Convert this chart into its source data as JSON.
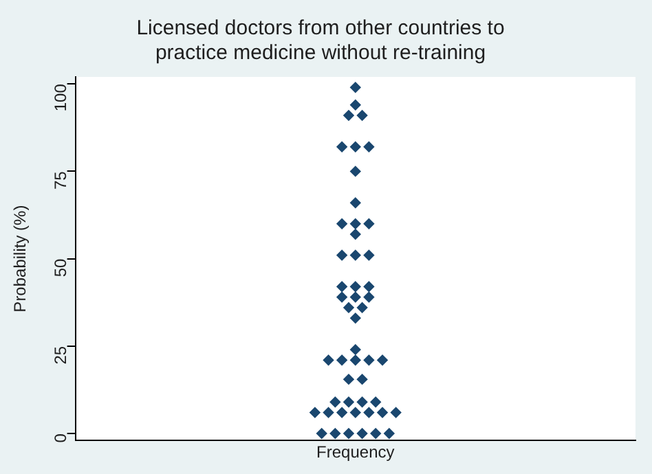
{
  "chart_data": {
    "type": "scatter",
    "title": "Licensed doctors from other countries to\npractice medicine without re-training",
    "xlabel": "Frequency",
    "ylabel": "Probability (%)",
    "categories": [
      null,
      null,
      null,
      null,
      null,
      null,
      null,
      null,
      null,
      null,
      null,
      null,
      null,
      null,
      null,
      null,
      null,
      null,
      null,
      null,
      null,
      null,
      null,
      null,
      null,
      null,
      null,
      null,
      null,
      null,
      null,
      null,
      null,
      null,
      null,
      null,
      null,
      null,
      null,
      null,
      null,
      null,
      null,
      null,
      null,
      null,
      null,
      null,
      null,
      null,
      null,
      null,
      null,
      null,
      null,
      null,
      null,
      null,
      null,
      null,
      null,
      null,
      null,
      null,
      null,
      null,
      null,
      null,
      null,
      null,
      null,
      null,
      null,
      null,
      null,
      null,
      null,
      null,
      null,
      null,
      null,
      null,
      null
    ],
    "series": [
      {
        "color": "#1a476f",
        "values": [
          null,
          null,
          null,
          null,
          null,
          null,
          null,
          null,
          null,
          null,
          null,
          null,
          null,
          null,
          null,
          null,
          null,
          null,
          null,
          null,
          null,
          null,
          null,
          null,
          null,
          null,
          null,
          null,
          null,
          null,
          null,
          null,
          null,
          null,
          null,
          6,
          0,
          6,
          0,
          6,
          0,
          6,
          0,
          6,
          0,
          6,
          0,
          6,
          null,
          null,
          null,
          null,
          null,
          null,
          null,
          null,
          null,
          null,
          null,
          null,
          null,
          null,
          null,
          null,
          null,
          null,
          null,
          null,
          null,
          null,
          null,
          null,
          null,
          null,
          null,
          null,
          null,
          null,
          null,
          null,
          null,
          null,
          null
        ]
      },
      {
        "color": "#1a476f",
        "values": [
          null,
          null,
          null,
          null,
          null,
          null,
          null,
          null,
          null,
          null,
          null,
          null,
          null,
          null,
          null,
          null,
          null,
          null,
          null,
          null,
          null,
          null,
          null,
          null,
          null,
          null,
          null,
          null,
          null,
          null,
          null,
          null,
          null,
          null,
          null,
          null,
          null,
          21,
          9,
          21,
          9,
          21,
          9,
          21,
          9,
          21,
          null,
          null,
          null,
          null,
          null,
          null,
          null,
          null,
          null,
          null,
          null,
          null,
          null,
          null,
          null,
          null,
          null,
          null,
          null,
          null,
          null,
          null,
          null,
          null,
          null,
          null,
          null,
          null,
          null,
          null,
          null,
          null,
          null,
          null,
          null,
          null,
          null
        ]
      },
      {
        "color": "#1a476f",
        "values": [
          null,
          null,
          null,
          null,
          null,
          null,
          null,
          null,
          null,
          null,
          null,
          null,
          null,
          null,
          null,
          null,
          null,
          null,
          null,
          null,
          null,
          null,
          null,
          null,
          null,
          null,
          null,
          null,
          null,
          null,
          null,
          null,
          null,
          null,
          null,
          null,
          null,
          null,
          null,
          39,
          15.5,
          24,
          15.5,
          39,
          null,
          null,
          null,
          null,
          null,
          null,
          null,
          null,
          null,
          null,
          null,
          null,
          null,
          null,
          null,
          null,
          null,
          null,
          null,
          null,
          null,
          null,
          null,
          null,
          null,
          null,
          null,
          null,
          null,
          null,
          null,
          null,
          null,
          null,
          null,
          null,
          null,
          null,
          null
        ]
      },
      {
        "color": "#1a476f",
        "values": [
          null,
          null,
          null,
          null,
          null,
          null,
          null,
          null,
          null,
          null,
          null,
          null,
          null,
          null,
          null,
          null,
          null,
          null,
          null,
          null,
          null,
          null,
          null,
          null,
          null,
          null,
          null,
          null,
          null,
          null,
          null,
          null,
          null,
          null,
          null,
          null,
          null,
          null,
          null,
          42,
          36,
          33,
          36,
          42,
          null,
          null,
          null,
          null,
          null,
          null,
          null,
          null,
          null,
          null,
          null,
          null,
          null,
          null,
          null,
          null,
          null,
          null,
          null,
          null,
          null,
          null,
          null,
          null,
          null,
          null,
          null,
          null,
          null,
          null,
          null,
          null,
          null,
          null,
          null,
          null,
          null,
          null,
          null
        ]
      },
      {
        "color": "#1a476f",
        "values": [
          null,
          null,
          null,
          null,
          null,
          null,
          null,
          null,
          null,
          null,
          null,
          null,
          null,
          null,
          null,
          null,
          null,
          null,
          null,
          null,
          null,
          null,
          null,
          null,
          null,
          null,
          null,
          null,
          null,
          null,
          null,
          null,
          null,
          null,
          null,
          null,
          null,
          null,
          null,
          51,
          91,
          39,
          91,
          51,
          null,
          null,
          null,
          null,
          null,
          null,
          null,
          null,
          null,
          null,
          null,
          null,
          null,
          null,
          null,
          null,
          null,
          null,
          null,
          null,
          null,
          null,
          null,
          null,
          null,
          null,
          null,
          null,
          null,
          null,
          null,
          null,
          null,
          null,
          null,
          null,
          null,
          null,
          null
        ]
      },
      {
        "color": "#1a476f",
        "values": [
          null,
          null,
          null,
          null,
          null,
          null,
          null,
          null,
          null,
          null,
          null,
          null,
          null,
          null,
          null,
          null,
          null,
          null,
          null,
          null,
          null,
          null,
          null,
          null,
          null,
          null,
          null,
          null,
          null,
          null,
          null,
          null,
          null,
          null,
          null,
          null,
          null,
          null,
          null,
          60,
          null,
          42,
          null,
          60,
          null,
          null,
          null,
          null,
          null,
          null,
          null,
          null,
          null,
          null,
          null,
          null,
          null,
          null,
          null,
          null,
          null,
          null,
          null,
          null,
          null,
          null,
          null,
          null,
          null,
          null,
          null,
          null,
          null,
          null,
          null,
          null,
          null,
          null,
          null,
          null,
          null,
          null,
          null
        ]
      },
      {
        "color": "#1a476f",
        "values": [
          null,
          null,
          null,
          null,
          null,
          null,
          null,
          null,
          null,
          null,
          null,
          null,
          null,
          null,
          null,
          null,
          null,
          null,
          null,
          null,
          null,
          null,
          null,
          null,
          null,
          null,
          null,
          null,
          null,
          null,
          null,
          null,
          null,
          null,
          null,
          null,
          null,
          null,
          null,
          82,
          null,
          51,
          null,
          82,
          null,
          null,
          null,
          null,
          null,
          null,
          null,
          null,
          null,
          null,
          null,
          null,
          null,
          null,
          null,
          null,
          null,
          null,
          null,
          null,
          null,
          null,
          null,
          null,
          null,
          null,
          null,
          null,
          null,
          null,
          null,
          null,
          null,
          null,
          null,
          null,
          null,
          null,
          null
        ]
      },
      {
        "color": "#1a476f",
        "values": [
          null,
          null,
          null,
          null,
          null,
          null,
          null,
          null,
          null,
          null,
          null,
          null,
          null,
          null,
          null,
          null,
          null,
          null,
          null,
          null,
          null,
          null,
          null,
          null,
          null,
          null,
          null,
          null,
          null,
          null,
          null,
          null,
          null,
          null,
          null,
          null,
          null,
          null,
          null,
          null,
          null,
          57,
          null,
          null,
          null,
          null,
          null,
          null,
          null,
          null,
          null,
          null,
          null,
          null,
          null,
          null,
          null,
          null,
          null,
          null,
          null,
          null,
          null,
          null,
          null,
          null,
          null,
          null,
          null,
          null,
          null,
          null,
          null,
          null,
          null,
          null,
          null,
          null,
          null,
          null,
          null,
          null,
          null
        ]
      },
      {
        "color": "#1a476f",
        "values": [
          null,
          null,
          null,
          null,
          null,
          null,
          null,
          null,
          null,
          null,
          null,
          null,
          null,
          null,
          null,
          null,
          null,
          null,
          null,
          null,
          null,
          null,
          null,
          null,
          null,
          null,
          null,
          null,
          null,
          null,
          null,
          null,
          null,
          null,
          null,
          null,
          null,
          null,
          null,
          null,
          null,
          60,
          null,
          null,
          null,
          null,
          null,
          null,
          null,
          null,
          null,
          null,
          null,
          null,
          null,
          null,
          null,
          null,
          null,
          null,
          null,
          null,
          null,
          null,
          null,
          null,
          null,
          null,
          null,
          null,
          null,
          null,
          null,
          null,
          null,
          null,
          null,
          null,
          null,
          null,
          null,
          null,
          null
        ]
      },
      {
        "color": "#1a476f",
        "values": [
          null,
          null,
          null,
          null,
          null,
          null,
          null,
          null,
          null,
          null,
          null,
          null,
          null,
          null,
          null,
          null,
          null,
          null,
          null,
          null,
          null,
          null,
          null,
          null,
          null,
          null,
          null,
          null,
          null,
          null,
          null,
          null,
          null,
          null,
          null,
          null,
          null,
          null,
          null,
          null,
          null,
          66,
          null,
          null,
          null,
          null,
          null,
          null,
          null,
          null,
          null,
          null,
          null,
          null,
          null,
          null,
          null,
          null,
          null,
          null,
          null,
          null,
          null,
          null,
          null,
          null,
          null,
          null,
          null,
          null,
          null,
          null,
          null,
          null,
          null,
          null,
          null,
          null,
          null,
          null,
          null,
          null,
          null
        ]
      },
      {
        "color": "#1a476f",
        "values": [
          null,
          null,
          null,
          null,
          null,
          null,
          null,
          null,
          null,
          null,
          null,
          null,
          null,
          null,
          null,
          null,
          null,
          null,
          null,
          null,
          null,
          null,
          null,
          null,
          null,
          null,
          null,
          null,
          null,
          null,
          null,
          null,
          null,
          null,
          null,
          null,
          null,
          null,
          null,
          null,
          null,
          75,
          null,
          null,
          null,
          null,
          null,
          null,
          null,
          null,
          null,
          null,
          null,
          null,
          null,
          null,
          null,
          null,
          null,
          null,
          null,
          null,
          null,
          null,
          null,
          null,
          null,
          null,
          null,
          null,
          null,
          null,
          null,
          null,
          null,
          null,
          null,
          null,
          null,
          null,
          null,
          null,
          null
        ]
      },
      {
        "color": "#1a476f",
        "values": [
          null,
          null,
          null,
          null,
          null,
          null,
          null,
          null,
          null,
          null,
          null,
          null,
          null,
          null,
          null,
          null,
          null,
          null,
          null,
          null,
          null,
          null,
          null,
          null,
          null,
          null,
          null,
          null,
          null,
          null,
          null,
          null,
          null,
          null,
          null,
          null,
          null,
          null,
          null,
          null,
          null,
          82,
          null,
          null,
          null,
          null,
          null,
          null,
          null,
          null,
          null,
          null,
          null,
          null,
          null,
          null,
          null,
          null,
          null,
          null,
          null,
          null,
          null,
          null,
          null,
          null,
          null,
          null,
          null,
          null,
          null,
          null,
          null,
          null,
          null,
          null,
          null,
          null,
          null,
          null,
          null,
          null,
          null
        ]
      },
      {
        "color": "#1a476f",
        "values": [
          null,
          null,
          null,
          null,
          null,
          null,
          null,
          null,
          null,
          null,
          null,
          null,
          null,
          null,
          null,
          null,
          null,
          null,
          null,
          null,
          null,
          null,
          null,
          null,
          null,
          null,
          null,
          null,
          null,
          null,
          null,
          null,
          null,
          null,
          null,
          null,
          null,
          null,
          null,
          null,
          null,
          94,
          null,
          null,
          null,
          null,
          null,
          null,
          null,
          null,
          null,
          null,
          null,
          null,
          null,
          null,
          null,
          null,
          null,
          null,
          null,
          null,
          null,
          null,
          null,
          null,
          null,
          null,
          null,
          null,
          null,
          null,
          null,
          null,
          null,
          null,
          null,
          null,
          null,
          null,
          null,
          null,
          null
        ]
      },
      {
        "color": "#1a476f",
        "values": [
          null,
          null,
          null,
          null,
          null,
          null,
          null,
          null,
          null,
          null,
          null,
          null,
          null,
          null,
          null,
          null,
          null,
          null,
          null,
          null,
          null,
          null,
          null,
          null,
          null,
          null,
          null,
          null,
          null,
          null,
          null,
          null,
          null,
          null,
          null,
          null,
          null,
          null,
          null,
          null,
          null,
          99,
          null,
          null,
          null,
          null,
          null,
          null,
          null,
          null,
          null,
          null,
          null,
          null,
          null,
          null,
          null,
          null,
          null,
          null,
          null,
          null,
          null,
          null,
          null,
          null,
          null,
          null,
          null,
          null,
          null,
          null,
          null,
          null,
          null,
          null,
          null,
          null,
          null,
          null,
          null,
          null,
          null
        ]
      }
    ],
    "ylim": [
      -2,
      102
    ],
    "yticks": [
      0,
      25,
      50,
      75,
      100
    ],
    "tick_labels": "y",
    "marker": "diamond",
    "grid": false,
    "legend": false
  }
}
